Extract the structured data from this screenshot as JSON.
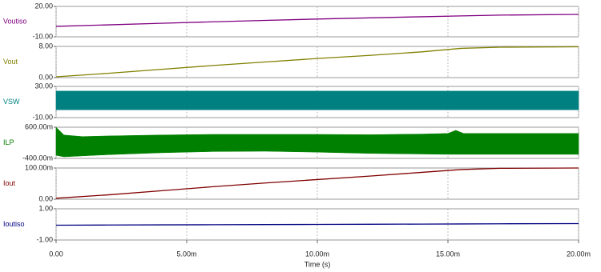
{
  "chart_data": [
    {
      "type": "line",
      "x": [
        0,
        0.002,
        0.004,
        0.006,
        0.008,
        0.01,
        0.012,
        0.014,
        0.0155,
        0.017,
        0.02
      ],
      "series": [
        {
          "name": "Voutiso",
          "color": "#800080",
          "values": [
            0.3,
            1.8,
            3.3,
            4.8,
            6.2,
            7.5,
            8.7,
            9.8,
            10.6,
            11.4,
            12.1
          ]
        }
      ],
      "ylim": [
        -10,
        20
      ],
      "yticks": [
        {
          "value": -10,
          "label": "-10.00"
        },
        {
          "value": 20,
          "label": "20.00"
        }
      ]
    },
    {
      "type": "line",
      "x": [
        0,
        0.002,
        0.004,
        0.006,
        0.008,
        0.01,
        0.012,
        0.014,
        0.0155,
        0.017,
        0.02
      ],
      "series": [
        {
          "name": "Vout",
          "color": "#808000",
          "values": [
            0.2,
            1.1,
            2.1,
            3.1,
            4.0,
            4.9,
            5.7,
            6.6,
            7.5,
            7.8,
            7.9
          ]
        }
      ],
      "ylim": [
        0,
        8
      ],
      "yticks": [
        {
          "value": 0,
          "label": "0.00"
        },
        {
          "value": 8,
          "label": "8.00"
        }
      ]
    },
    {
      "type": "band",
      "x": [
        0,
        0.02
      ],
      "series": [
        {
          "name": "VSW",
          "color": "#008080",
          "high": [
            24,
            24
          ],
          "low": [
            0,
            0
          ]
        }
      ],
      "ylim": [
        -10,
        30
      ],
      "yticks": [
        {
          "value": -10,
          "label": "-10.00"
        },
        {
          "value": 30,
          "label": "30.00"
        }
      ]
    },
    {
      "type": "band",
      "x": [
        0,
        0.0003,
        0.001,
        0.002,
        0.004,
        0.006,
        0.008,
        0.01,
        0.012,
        0.014,
        0.015,
        0.0153,
        0.0156,
        0.016,
        0.018,
        0.02
      ],
      "series": [
        {
          "name": "ILP",
          "color": "#008000",
          "high": [
            0.6,
            0.35,
            0.3,
            0.32,
            0.35,
            0.37,
            0.37,
            0.37,
            0.36,
            0.38,
            0.4,
            0.5,
            0.4,
            0.4,
            0.4,
            0.4
          ],
          "low": [
            -0.3,
            -0.35,
            -0.32,
            -0.28,
            -0.22,
            -0.18,
            -0.17,
            -0.2,
            -0.24,
            -0.26,
            -0.27,
            -0.27,
            -0.27,
            -0.27,
            -0.27,
            -0.27
          ]
        }
      ],
      "ylim": [
        -0.4,
        0.6
      ],
      "yticks": [
        {
          "value": -0.4,
          "label": "-400.00m"
        },
        {
          "value": 0.6,
          "label": "600.00m"
        }
      ]
    },
    {
      "type": "line",
      "x": [
        0,
        0.002,
        0.004,
        0.006,
        0.008,
        0.01,
        0.012,
        0.014,
        0.0155,
        0.017,
        0.02
      ],
      "series": [
        {
          "name": "Iout",
          "color": "#800000",
          "values": [
            0.003,
            0.014,
            0.027,
            0.04,
            0.052,
            0.063,
            0.074,
            0.086,
            0.095,
            0.099,
            0.1
          ]
        }
      ],
      "ylim": [
        0,
        0.1
      ],
      "yticks": [
        {
          "value": 0,
          "label": "0.00"
        },
        {
          "value": 0.1,
          "label": "100.00m"
        }
      ]
    },
    {
      "type": "line",
      "x": [
        0,
        0.002,
        0.004,
        0.006,
        0.008,
        0.01,
        0.012,
        0.014,
        0.0155,
        0.017,
        0.02
      ],
      "series": [
        {
          "name": "Ioutiso",
          "color": "#000080",
          "values": [
            -0.05,
            -0.04,
            -0.03,
            -0.02,
            -0.01,
            0,
            0.01,
            0.02,
            0.03,
            0.04,
            0.05
          ]
        }
      ],
      "ylim": [
        -1,
        1
      ],
      "yticks": [
        {
          "value": -1,
          "label": "-1.00"
        },
        {
          "value": 1,
          "label": "1.00"
        }
      ],
      "xlim": [
        0,
        0.02
      ],
      "x_label": "Time (s)",
      "grid": true,
      "xticks": [
        {
          "value": 0,
          "label": "0.00"
        },
        {
          "value": 0.005,
          "label": "5.00m"
        },
        {
          "value": 0.01,
          "label": "10.00m"
        },
        {
          "value": 0.015,
          "label": "15.00m"
        },
        {
          "value": 0.02,
          "label": "20.00m"
        }
      ]
    }
  ]
}
